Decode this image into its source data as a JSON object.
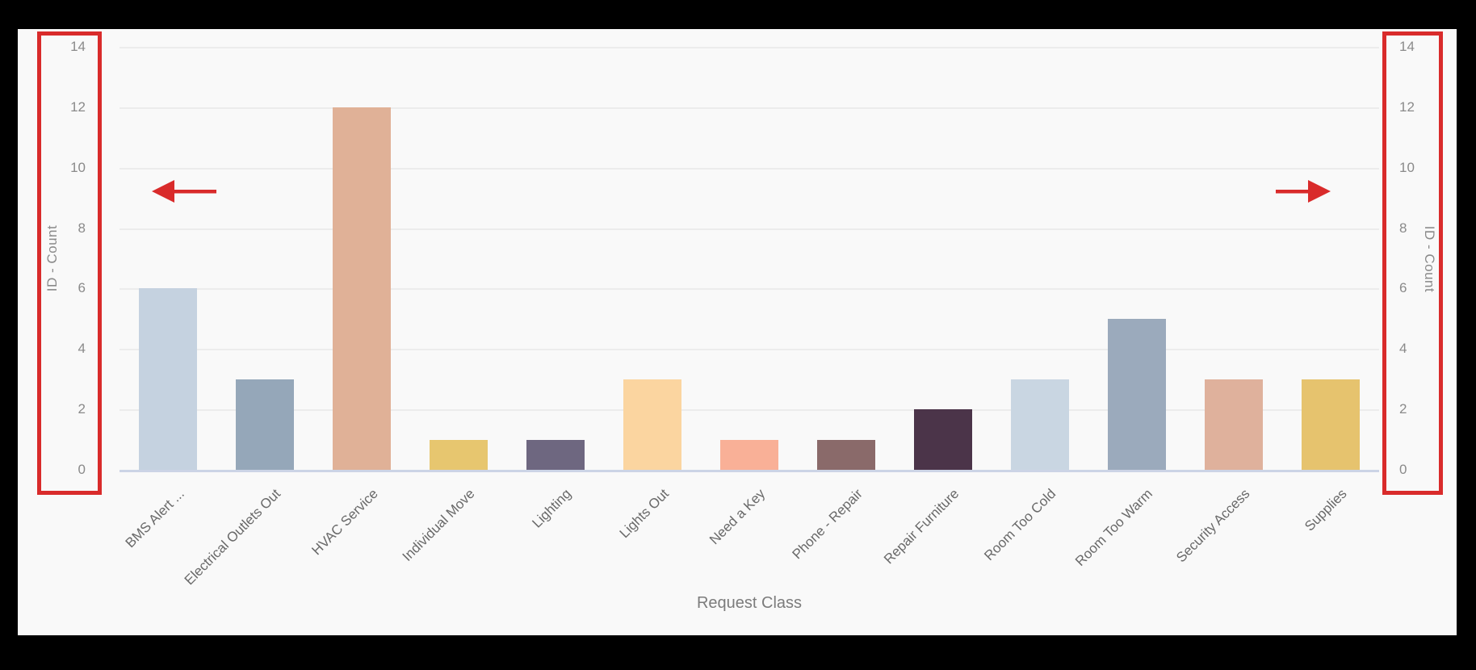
{
  "window": {
    "frame_background": "#000000",
    "panel_background": "#f9f9f9"
  },
  "chart_data": {
    "type": "bar",
    "title": "",
    "xlabel": "Request Class",
    "left_axis_label": "ID - Count",
    "right_axis_label": "ID - Count",
    "ylim": [
      0,
      14
    ],
    "yticks": [
      0,
      2,
      4,
      6,
      8,
      10,
      12,
      14
    ],
    "grid": true,
    "dual_y_axes": true,
    "legend": "none",
    "categories": [
      "BMS Alert ...",
      "Electrical Outlets Out",
      "HVAC Service",
      "Individual Move",
      "Lighting",
      "Lights Out",
      "Need a Key",
      "Phone - Repair",
      "Repair Furniture",
      "Room Too Cold",
      "Room Too Warm",
      "Security Access",
      "Supplies"
    ],
    "values": [
      6,
      3,
      12,
      1,
      1,
      3,
      1,
      1,
      2,
      3,
      5,
      3,
      3
    ],
    "bar_colors": [
      "#c5d2e0",
      "#95a7b9",
      "#e0b197",
      "#e7c66f",
      "#6e6780",
      "#fbd5a0",
      "#f9b097",
      "#8a6a6a",
      "#4b3449",
      "#c9d6e2",
      "#9baabc",
      "#dfb19c",
      "#e6c36e"
    ]
  },
  "annotations": {
    "highlight_color": "#d92b2b",
    "left_axis_box": "left-y-axis-highlight",
    "right_axis_box": "right-y-axis-highlight",
    "left_arrow_direction": "left",
    "right_arrow_direction": "right"
  },
  "styles": {
    "tick_color": "#8a8a8a",
    "category_label_color": "#696969",
    "axis_title_color": "#8a8a8a",
    "gridline_color": "#ececec",
    "axis_line_color": "#ccd4e6"
  }
}
